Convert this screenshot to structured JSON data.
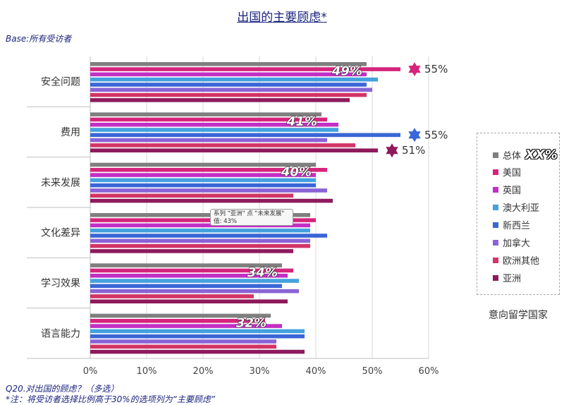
{
  "header": {
    "title": "出国的主要顾虑*",
    "base": "Base:所有受访者"
  },
  "footnotes": {
    "q": "Q20.对出国的顾虑？（多选）",
    "note": "*注：将受访者选择比例高于30%的选项列为“主要顾虑”"
  },
  "legend": {
    "overall_tag": "XX%",
    "caption": "意向留学国家"
  },
  "tooltip": {
    "line1": "系列 \"亚洲\" 点 \"未来发展\"",
    "line2": "值: 43%"
  },
  "chart_data": {
    "type": "bar",
    "orientation": "horizontal",
    "categories": [
      "安全问题",
      "费用",
      "未来发展",
      "文化差异",
      "学习效果",
      "语言能力"
    ],
    "xlim": [
      0,
      60
    ],
    "xticks": [
      "0%",
      "10%",
      "20%",
      "30%",
      "40%",
      "50%",
      "60%"
    ],
    "grid": true,
    "legend_position": "right",
    "series": [
      {
        "name": "总体",
        "color": "#7f7f7f",
        "values": [
          49,
          41,
          40,
          39,
          34,
          32
        ]
      },
      {
        "name": "美国",
        "color": "#d6247c",
        "values": [
          55,
          42,
          42,
          40,
          36,
          31
        ]
      },
      {
        "name": "英国",
        "color": "#c22fc4",
        "values": [
          49,
          44,
          40,
          39,
          35,
          34
        ]
      },
      {
        "name": "澳大利亚",
        "color": "#43a1de",
        "values": [
          51,
          44,
          40,
          39,
          37,
          38
        ]
      },
      {
        "name": "新西兰",
        "color": "#3a66d6",
        "values": [
          49,
          55,
          40,
          42,
          34,
          38
        ]
      },
      {
        "name": "加拿大",
        "color": "#8a63d6",
        "values": [
          50,
          42,
          42,
          39,
          37,
          33
        ]
      },
      {
        "name": "欧洲其他",
        "color": "#d23566",
        "values": [
          49,
          47,
          36,
          39,
          29,
          33
        ]
      },
      {
        "name": "亚洲",
        "color": "#8e1a5c",
        "values": [
          46,
          51,
          43,
          36,
          35,
          38
        ]
      }
    ],
    "overall_labels": [
      "49%",
      "41%",
      "40%",
      "",
      "34%",
      "32%"
    ],
    "callouts": [
      {
        "category": "安全问题",
        "series": "美国",
        "label": "55%",
        "color": "#d6247c"
      },
      {
        "category": "费用",
        "series": "新西兰",
        "label": "55%",
        "color": "#3a66d6"
      },
      {
        "category": "费用",
        "series": "亚洲",
        "label": "51%",
        "color": "#8e1a5c"
      }
    ]
  }
}
